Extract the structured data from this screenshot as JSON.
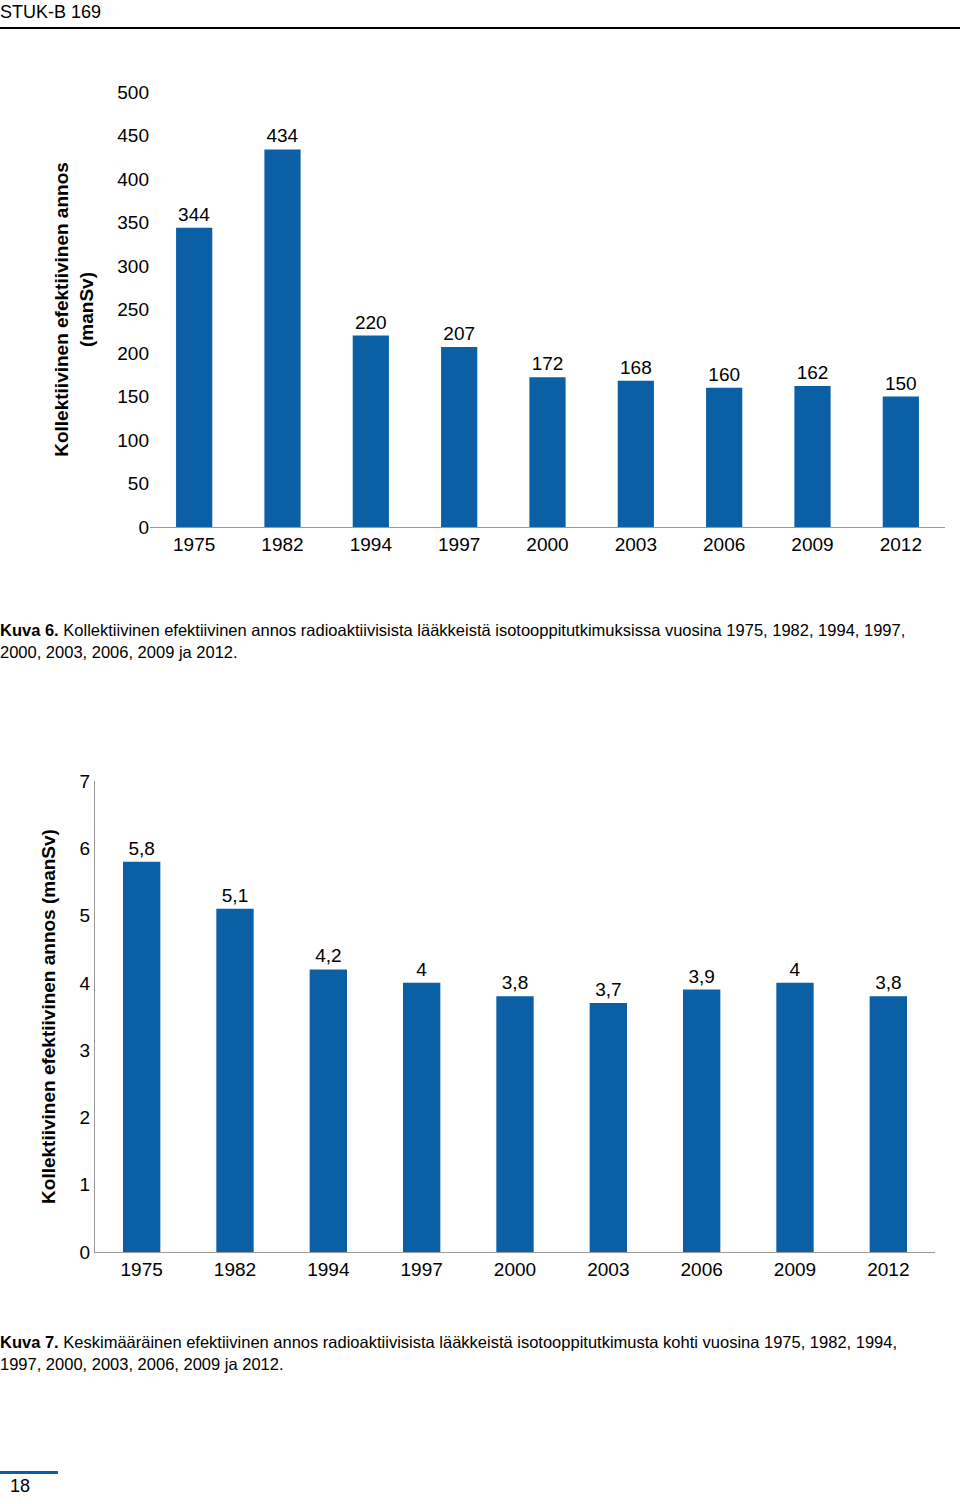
{
  "header": "STUK-B 169",
  "page_number": 18,
  "chart_data": [
    {
      "type": "bar",
      "title": "Kuva 6. Kollektiivinen efektiivinen annos radioaktiivisista lääkkeistä isotooppitutkimuksissa vuosina 1975, 1982, 1994, 1997, 2000, 2003, 2006, 2009 ja 2012.",
      "y_label": "Kollektiivinen efektiivinen annos\n(manSv)",
      "categories": [
        "1975",
        "1982",
        "1994",
        "1997",
        "2000",
        "2003",
        "2006",
        "2009",
        "2012"
      ],
      "values": [
        344,
        434,
        220,
        207,
        172,
        168,
        160,
        162,
        150
      ],
      "color": "#0b5fa5",
      "ylim": [
        0,
        500
      ],
      "yticks": [
        0,
        50,
        100,
        150,
        200,
        250,
        300,
        350,
        400,
        450,
        500
      ],
      "grid": false,
      "data_labels": true
    },
    {
      "type": "bar",
      "title": "Kuva 7. Keskimääräinen efektiivinen annos radioaktiivisista lääkkeistä isotooppitutkimusta kohti vuosina 1975, 1982, 1994, 1997, 2000, 2003, 2006, 2009 ja 2012.",
      "y_label": "Kollektiivinen efektiivinen annos (manSv)",
      "categories": [
        "1975",
        "1982",
        "1994",
        "1997",
        "2000",
        "2003",
        "2006",
        "2009",
        "2012"
      ],
      "values": [
        5.8,
        5.1,
        4.2,
        4,
        3.8,
        3.7,
        3.9,
        4,
        3.8
      ],
      "value_labels": [
        "5,8",
        "5,1",
        "4,2",
        "4",
        "3,8",
        "3,7",
        "3,9",
        "4",
        "3,8"
      ],
      "color": "#0b5fa5",
      "ylim": [
        0,
        7
      ],
      "yticks": [
        0,
        1,
        2,
        3,
        4,
        5,
        6,
        7
      ],
      "grid": false,
      "data_labels": true
    }
  ]
}
